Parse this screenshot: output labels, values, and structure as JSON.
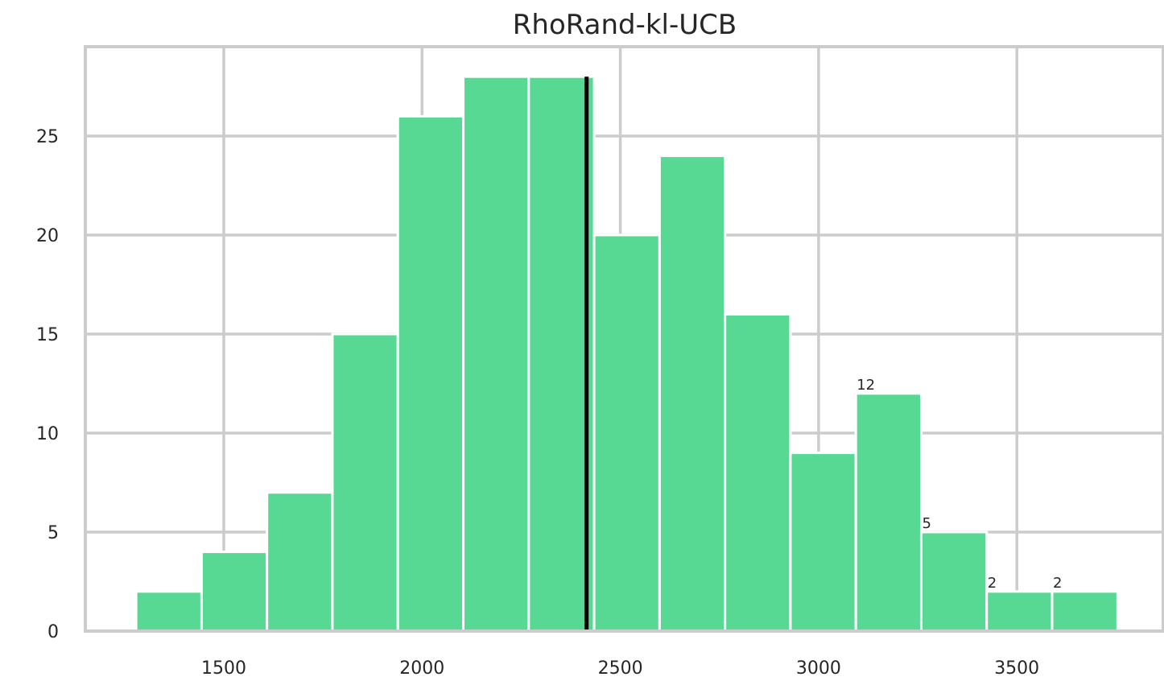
{
  "chart_data": {
    "type": "bar",
    "title": "RhoRand-kl-UCB",
    "xlabel": "",
    "ylabel": "",
    "bin_edges": [
      1279,
      1444,
      1609,
      1774,
      1939,
      2104,
      2269,
      2434,
      2599,
      2764,
      2929,
      3094,
      3259,
      3424,
      3589,
      3754
    ],
    "values": [
      2,
      4,
      7,
      15,
      26,
      28,
      28,
      20,
      24,
      16,
      9,
      12,
      5,
      2,
      2
    ],
    "data_labels": [
      {
        "bin": 11,
        "text": "12"
      },
      {
        "bin": 12,
        "text": "5"
      },
      {
        "bin": 13,
        "text": "2"
      },
      {
        "bin": 14,
        "text": "2"
      }
    ],
    "mean_line": 2415,
    "xlim": [
      1150,
      3515
    ],
    "ylim": [
      0,
      29.5
    ],
    "xticks": [
      1500,
      2000,
      2500,
      3000,
      3500
    ],
    "yticks": [
      0,
      5,
      10,
      15,
      20,
      25
    ],
    "grid": true,
    "colors": {
      "bar": "#57d994",
      "grid": "#cccccc",
      "mean_line": "#000000",
      "text": "#262626"
    }
  }
}
